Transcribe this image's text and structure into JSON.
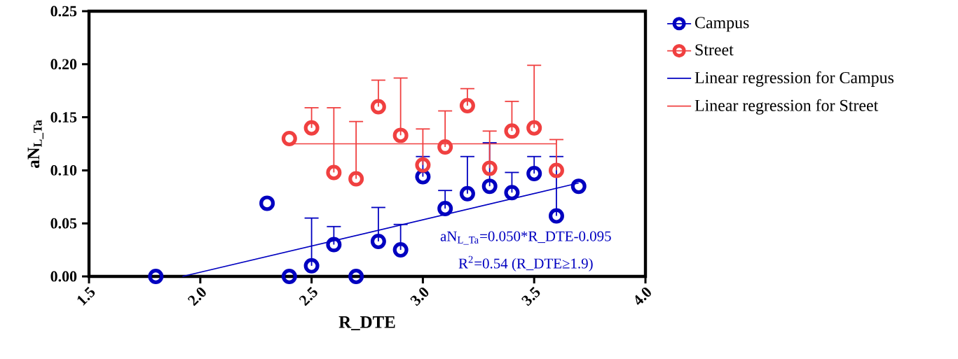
{
  "chart_data": {
    "type": "scatter",
    "xlabel": "R_DTE",
    "ylabel": "aN$_{L_Ta}$",
    "xlim": [
      1.5,
      4.0
    ],
    "ylim": [
      0,
      0.25
    ],
    "xticks": [
      {
        "value": 1.5,
        "label": "1.5"
      },
      {
        "value": 2.0,
        "label": "2.0"
      },
      {
        "value": 2.5,
        "label": "2.5"
      },
      {
        "value": 3.0,
        "label": "3.0"
      },
      {
        "value": 3.5,
        "label": "3.5"
      },
      {
        "value": 4.0,
        "label": "4.0"
      }
    ],
    "yticks": [
      {
        "value": 0,
        "label": "0.00"
      },
      {
        "value": 0.05,
        "label": "0.05"
      },
      {
        "value": 0.1,
        "label": "0.10"
      },
      {
        "value": 0.15,
        "label": "0.15"
      },
      {
        "value": 0.2,
        "label": "0.20"
      },
      {
        "value": 0.25,
        "label": "0.25"
      }
    ],
    "grid": false,
    "legend": "right",
    "marker": "circle",
    "series": [
      {
        "name": "Campus",
        "color": "#0000c0",
        "x": [
          1.8,
          2.3,
          2.4,
          2.5,
          2.6,
          2.7,
          2.8,
          2.9,
          3.0,
          3.1,
          3.2,
          3.3,
          3.4,
          3.5,
          3.6,
          3.7
        ],
        "values": [
          0.0,
          0.069,
          0.0,
          0.01,
          0.03,
          0.0,
          0.033,
          0.025,
          0.094,
          0.064,
          0.078,
          0.085,
          0.079,
          0.097,
          0.057,
          0.085
        ],
        "errors": [
          null,
          null,
          null,
          [
            0.01,
            0.055
          ],
          [
            0.03,
            0.047
          ],
          null,
          [
            0.033,
            0.065
          ],
          [
            0.025,
            0.049
          ],
          [
            0.094,
            0.113
          ],
          [
            0.064,
            0.081
          ],
          [
            0.078,
            0.113
          ],
          [
            0.085,
            0.126
          ],
          [
            0.079,
            0.098
          ],
          [
            0.097,
            0.113
          ],
          [
            0.057,
            0.113
          ],
          null
        ]
      },
      {
        "name": "Street",
        "color": "#f04040",
        "x": [
          2.4,
          2.5,
          2.6,
          2.7,
          2.8,
          2.9,
          3.0,
          3.1,
          3.2,
          3.3,
          3.4,
          3.5,
          3.6
        ],
        "values": [
          0.13,
          0.14,
          0.098,
          0.092,
          0.16,
          0.133,
          0.105,
          0.122,
          0.161,
          0.102,
          0.137,
          0.14,
          0.1
        ],
        "errors": [
          null,
          [
            0.14,
            0.159
          ],
          [
            0.098,
            0.159
          ],
          [
            0.092,
            0.146
          ],
          [
            0.16,
            0.185
          ],
          [
            0.133,
            0.187
          ],
          [
            0.105,
            0.139
          ],
          [
            0.122,
            0.156
          ],
          [
            0.161,
            0.177
          ],
          [
            0.102,
            0.137
          ],
          [
            0.137,
            0.165
          ],
          [
            0.14,
            0.199
          ],
          [
            0.1,
            0.129
          ]
        ]
      },
      {
        "name": "Linear regression for Campus",
        "type": "line",
        "marker": "none",
        "line_style": "solid",
        "color": "#0000c0",
        "x": [
          1.92,
          3.7
        ],
        "values": [
          0.0,
          0.088
        ]
      },
      {
        "name": "Linear regression for Street",
        "type": "line",
        "marker": "none",
        "line_style": "solid",
        "color": "#f04040",
        "x": [
          2.4,
          3.6
        ],
        "values": [
          0.125,
          0.125
        ]
      }
    ],
    "annotations": [
      "aN$_{L_Ta}$=0.050*R_DTE-0.095",
      "R$^{2}$=0.54 (R_DTE≥1.9)"
    ]
  }
}
